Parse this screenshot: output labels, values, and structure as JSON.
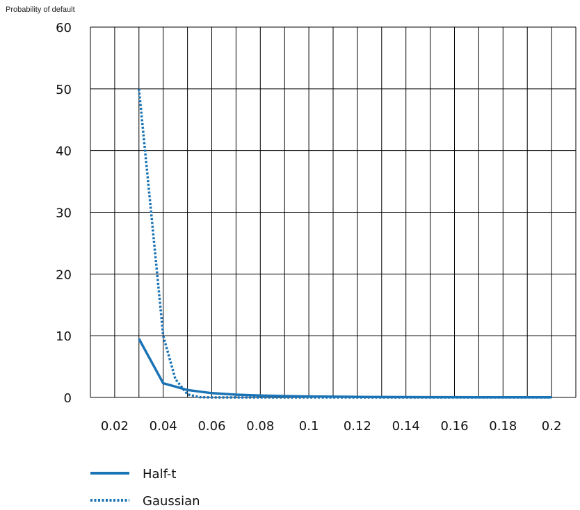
{
  "chart_data": {
    "type": "line",
    "title": "",
    "ylabel": "Probability of default",
    "xlabel": "",
    "x_ticks": [
      "0.02",
      "0.04",
      "0.06",
      "0.08",
      "0.1",
      "0.12",
      "0.14",
      "0.16",
      "0.18",
      "0.2"
    ],
    "y_ticks": [
      "0",
      "10",
      "20",
      "30",
      "40",
      "50",
      "60"
    ],
    "xlim": [
      0.01,
      0.21
    ],
    "ylim": [
      0,
      60
    ],
    "grid": true,
    "legend_position": "bottom-left",
    "series": [
      {
        "name": "Half-t",
        "style": "solid",
        "color": "#1a73b5",
        "x": [
          0.03,
          0.04,
          0.05,
          0.06,
          0.07,
          0.08,
          0.09,
          0.1,
          0.11,
          0.12,
          0.13,
          0.14,
          0.15,
          0.16,
          0.17,
          0.18,
          0.19,
          0.2
        ],
        "y": [
          9.5,
          2.3,
          1.2,
          0.7,
          0.45,
          0.3,
          0.22,
          0.16,
          0.12,
          0.09,
          0.07,
          0.06,
          0.05,
          0.04,
          0.03,
          0.03,
          0.02,
          0.02
        ]
      },
      {
        "name": "Gaussian",
        "style": "dotted",
        "color": "#1a73b5",
        "x": [
          0.03,
          0.035,
          0.04,
          0.045,
          0.05,
          0.055,
          0.06,
          0.07,
          0.08,
          0.09,
          0.1,
          0.11,
          0.12,
          0.13,
          0.14,
          0.15,
          0.16,
          0.17,
          0.18,
          0.19,
          0.2
        ],
        "y": [
          50,
          30,
          10,
          3,
          0.5,
          0.05,
          0,
          0,
          0,
          0,
          0,
          0,
          0,
          0,
          0,
          0,
          0,
          0,
          0,
          0,
          0
        ]
      }
    ]
  }
}
